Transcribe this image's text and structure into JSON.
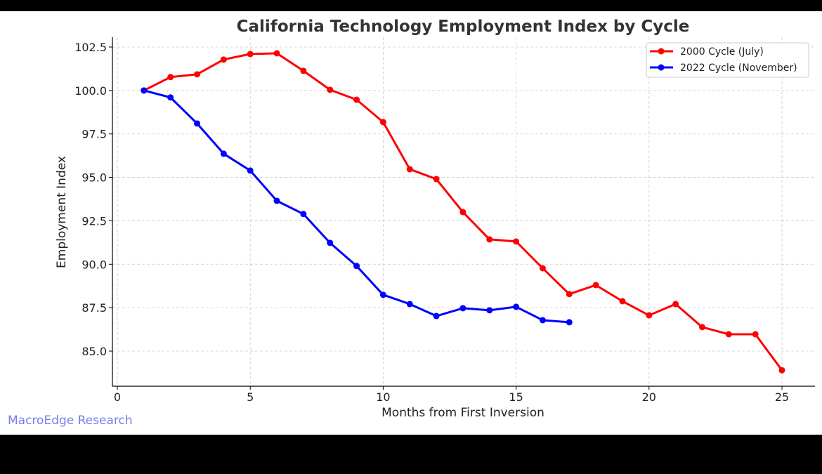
{
  "chart_data": {
    "type": "line",
    "title": "California Technology Employment Index by Cycle",
    "xlabel": "Months from First Inversion",
    "ylabel": "Employment Index",
    "xlim": [
      -0.2,
      26.2
    ],
    "ylim": [
      83.0,
      103.1
    ],
    "xticks": [
      0,
      5,
      10,
      15,
      20,
      25
    ],
    "xtick_labels": [
      "0",
      "5",
      "10",
      "15",
      "20",
      "25"
    ],
    "yticks": [
      85.0,
      87.5,
      90.0,
      92.5,
      95.0,
      97.5,
      100.0,
      102.5
    ],
    "ytick_labels": [
      "85.0",
      "87.5",
      "90.0",
      "92.5",
      "95.0",
      "97.5",
      "100.0",
      "102.5"
    ],
    "grid": true,
    "legend_position": "top-right",
    "series": [
      {
        "name": "2000 Cycle (July)",
        "color": "#ff0000",
        "x": [
          1,
          2,
          3,
          4,
          5,
          6,
          7,
          8,
          9,
          10,
          11,
          12,
          13,
          14,
          15,
          16,
          17,
          18,
          19,
          20,
          21,
          22,
          23,
          24,
          25
        ],
        "y": [
          100.0,
          100.77,
          100.93,
          101.78,
          102.1,
          102.14,
          101.13,
          100.04,
          99.47,
          98.18,
          95.47,
          94.9,
          93.0,
          91.43,
          91.31,
          89.77,
          88.28,
          88.8,
          87.87,
          87.06,
          87.71,
          86.38,
          85.97,
          85.97,
          83.9
        ]
      },
      {
        "name": "2022 Cycle (November)",
        "color": "#0000ff",
        "x": [
          1,
          2,
          3,
          4,
          5,
          6,
          7,
          8,
          9,
          10,
          11,
          12,
          13,
          14,
          15,
          16,
          17
        ],
        "y": [
          100.0,
          99.6,
          98.1,
          96.36,
          95.39,
          93.65,
          92.89,
          91.23,
          89.9,
          88.24,
          87.71,
          87.02,
          87.47,
          87.35,
          87.55,
          86.78,
          86.66
        ]
      }
    ]
  },
  "watermark": "MacroEdge Research"
}
